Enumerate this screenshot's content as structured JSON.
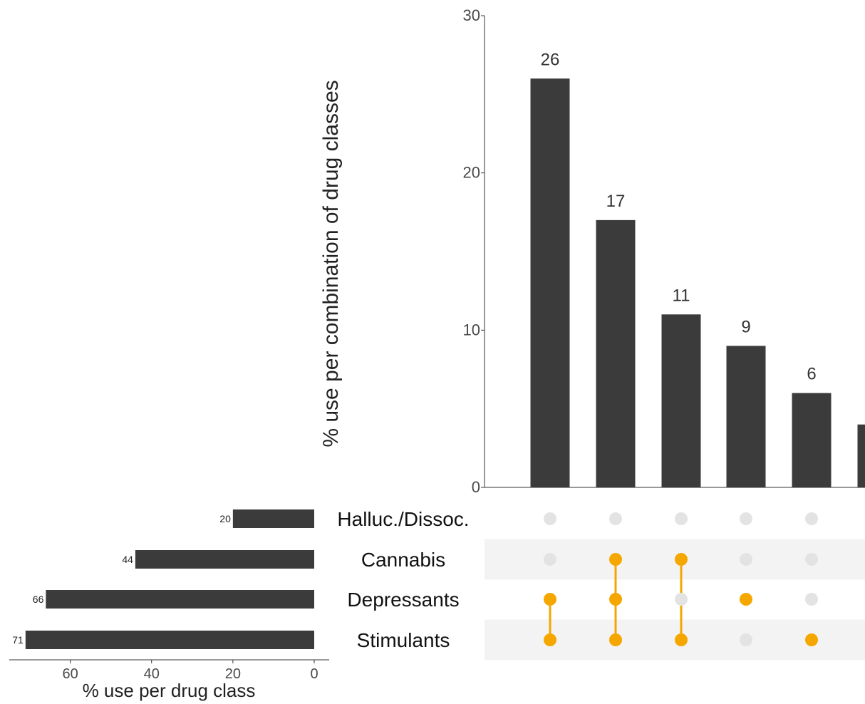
{
  "chart_data": [
    {
      "type": "bar",
      "title": "",
      "ylabel": "% use per combination of drug classes",
      "ylim": [
        0,
        30
      ],
      "yticks": [
        0,
        10,
        20,
        30
      ],
      "values": [
        26,
        17,
        11,
        9,
        6,
        4
      ],
      "value_labels": [
        "26",
        "17",
        "11",
        "9",
        "6",
        ""
      ],
      "bar_color": "#3b3b3b"
    },
    {
      "type": "bar",
      "orientation": "horizontal",
      "xlabel": "% use per drug class",
      "xlim": [
        0,
        75
      ],
      "xticks": [
        60,
        40,
        20,
        0
      ],
      "categories": [
        "Halluc./Dissoc.",
        "Cannabis",
        "Depressants",
        "Stimulants"
      ],
      "values": [
        20,
        44,
        66,
        71
      ],
      "bar_color": "#3b3b3b"
    },
    {
      "type": "matrix",
      "sets": [
        "Halluc./Dissoc.",
        "Cannabis",
        "Depressants",
        "Stimulants"
      ],
      "combinations": [
        [
          "Depressants",
          "Stimulants"
        ],
        [
          "Cannabis",
          "Depressants",
          "Stimulants"
        ],
        [
          "Cannabis",
          "Stimulants"
        ],
        [
          "Depressants"
        ],
        [
          "Stimulants"
        ],
        []
      ],
      "active_color": "#f5a700",
      "inactive_color": "#e3e3e3",
      "stripe_color": "#f3f3f3"
    }
  ]
}
